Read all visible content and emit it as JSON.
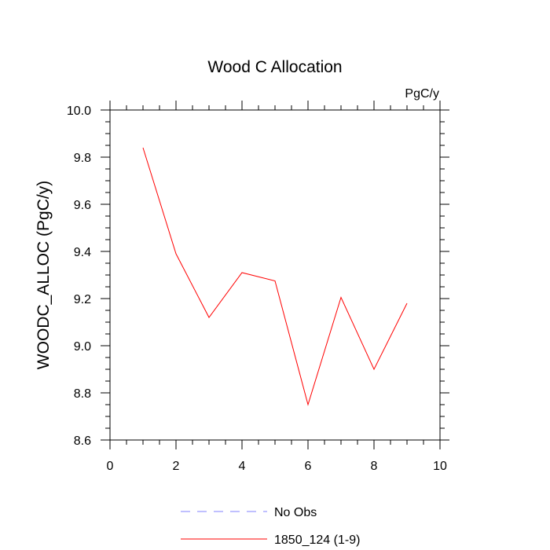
{
  "chart_data": {
    "type": "line",
    "title": "Wood C Allocation",
    "units_label": "PgC/y",
    "xlabel": "",
    "ylabel": "WOODC_ALLOC  (PgC/y)",
    "xlim": [
      0,
      10
    ],
    "ylim": [
      8.6,
      10.0
    ],
    "x_ticks": [
      0,
      2,
      4,
      6,
      8,
      10
    ],
    "x_tick_labels": [
      "0",
      "2",
      "4",
      "6",
      "8",
      "10"
    ],
    "y_ticks": [
      8.6,
      8.8,
      9.0,
      9.2,
      9.4,
      9.6,
      9.8,
      10.0
    ],
    "y_tick_labels": [
      "8.6",
      "8.8",
      "9.0",
      "9.2",
      "9.4",
      "9.6",
      "9.8",
      "10.0"
    ],
    "grid": false,
    "legend_position": "bottom",
    "series": [
      {
        "name": "1850_124 (1-9)",
        "color": "#ff0000",
        "dash": "solid",
        "x": [
          1,
          2,
          3,
          4,
          5,
          6,
          7,
          8,
          9
        ],
        "y": [
          9.84,
          9.39,
          9.12,
          9.31,
          9.275,
          8.75,
          9.205,
          8.9,
          9.18
        ]
      }
    ],
    "legend": [
      {
        "label": "No Obs",
        "color": "#8080ff",
        "dash": "dashed"
      },
      {
        "label": "1850_124 (1-9)",
        "color": "#ff0000",
        "dash": "solid"
      }
    ]
  }
}
